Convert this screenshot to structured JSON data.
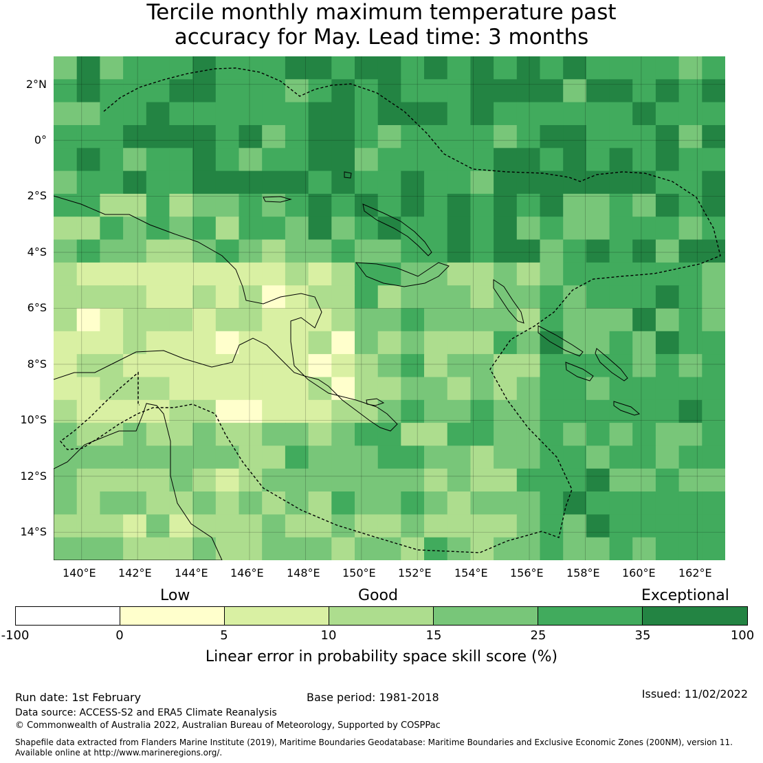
{
  "title": {
    "line1": "Tercile monthly maximum temperature past",
    "line2": "accuracy for May. Lead time: 3 months"
  },
  "map": {
    "lon_range": [
      139,
      163
    ],
    "lat_range": [
      -15,
      3
    ],
    "x_tick_labels": [
      "140°E",
      "142°E",
      "144°E",
      "146°E",
      "148°E",
      "150°E",
      "152°E",
      "154°E",
      "156°E",
      "158°E",
      "160°E",
      "162°E"
    ],
    "x_tick_values": [
      140,
      142,
      144,
      146,
      148,
      150,
      152,
      154,
      156,
      158,
      160,
      162
    ],
    "y_tick_labels": [
      "2°N",
      "0°",
      "2°S",
      "4°S",
      "6°S",
      "8°S",
      "10°S",
      "12°S",
      "14°S"
    ],
    "y_tick_values": [
      2,
      0,
      -2,
      -4,
      -6,
      -8,
      -10,
      -12,
      -14
    ],
    "colors": {
      "b0": "#ffffff",
      "b1": "#ffffcc",
      "b2": "#d9f0a3",
      "b3": "#addd8e",
      "b4": "#78c679",
      "b5": "#41ab5d",
      "b6": "#238443",
      "land": "#d9f0a3",
      "coast": "#000000",
      "gridline": "#000000"
    }
  },
  "legend": {
    "categories": {
      "low": "Low",
      "good": "Good",
      "exceptional": "Exceptional"
    },
    "boundaries": [
      "-100",
      "0",
      "5",
      "10",
      "15",
      "25",
      "35",
      "100"
    ],
    "label": "Linear error in probability space skill score (%)"
  },
  "footer": {
    "run_date": "Run date: 1st February",
    "base_period": "Base period: 1981-2018",
    "issued": "Issued: 11/02/2022",
    "data_source": "Data source: ACCESS-S2 and ERA5 Climate Reanalysis",
    "copyright": "© Commonwealth of Australia 2022, Australian Bureau of Meteorology, Supported by COSPPac",
    "shapefile_line1": "Shapefile data extracted from Flanders Marine Institute (2019), Maritime Boundaries Geodatabase: Maritime Boundaries and Exclusive Economic Zones (200NM), version 11.",
    "shapefile_line2": "Available online at http://www.marineregions.org/."
  }
}
